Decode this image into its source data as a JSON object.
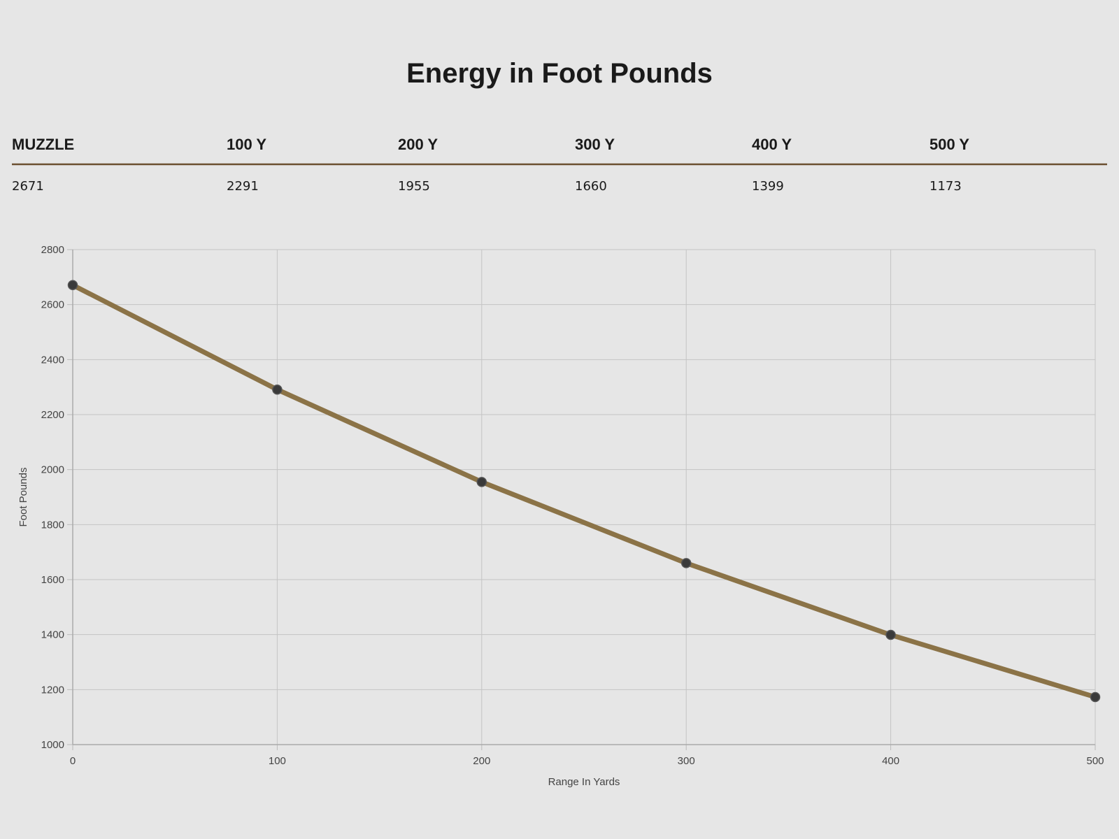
{
  "header": {
    "title": "Energy in Foot Pounds"
  },
  "table": {
    "columns": [
      "MUZZLE",
      "100 Y",
      "200 Y",
      "300 Y",
      "400 Y",
      "500 Y"
    ],
    "rows": [
      [
        "2671",
        "2291",
        "1955",
        "1660",
        "1399",
        "1173"
      ]
    ]
  },
  "chart_data": {
    "type": "line",
    "x_label": "Range In Yards",
    "y_label": "Foot Pounds",
    "x": [
      0,
      100,
      200,
      300,
      400,
      500
    ],
    "values": [
      2671,
      2291,
      1955,
      1660,
      1399,
      1173
    ],
    "color": "#8b7347",
    "marker_color": "#3a3a3a",
    "xlim": [
      0,
      500
    ],
    "xticks": [
      0,
      100,
      200,
      300,
      400,
      500
    ],
    "ylim": [
      1000,
      2800
    ],
    "yticks": [
      1000,
      1200,
      1400,
      1600,
      1800,
      2000,
      2200,
      2400,
      2600,
      2800
    ],
    "grid": true
  }
}
